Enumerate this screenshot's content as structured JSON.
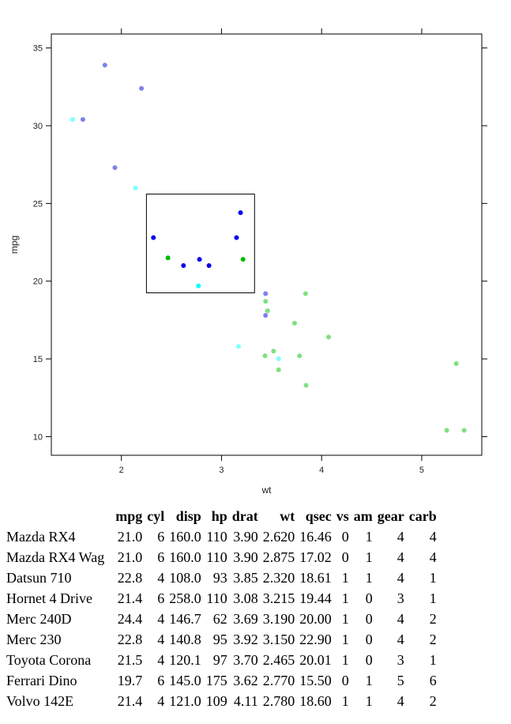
{
  "chart_data": {
    "type": "scatter",
    "title": "",
    "xlabel": "wt",
    "ylabel": "mpg",
    "xlim": [
      1.3,
      5.6
    ],
    "ylim": [
      8.8,
      35.9
    ],
    "x_ticks": [
      2,
      3,
      4,
      5
    ],
    "y_ticks": [
      10,
      15,
      20,
      25,
      30,
      35
    ],
    "grid": false,
    "selection_box": {
      "x": [
        2.25,
        3.33
      ],
      "y": [
        19.25,
        25.6
      ]
    },
    "colors": {
      "blue": "#0000ee",
      "green": "#00bb00",
      "cyan": "#00ffff",
      "light_blue": "#8080ee",
      "light_green": "#80e080",
      "light_cyan": "#80ffff"
    },
    "points": [
      {
        "x": 1.835,
        "y": 33.9,
        "color": "light_blue"
      },
      {
        "x": 2.2,
        "y": 32.4,
        "color": "light_blue"
      },
      {
        "x": 1.513,
        "y": 30.4,
        "color": "light_cyan"
      },
      {
        "x": 1.615,
        "y": 30.4,
        "color": "light_blue"
      },
      {
        "x": 1.935,
        "y": 27.3,
        "color": "light_blue"
      },
      {
        "x": 2.14,
        "y": 26.0,
        "color": "light_cyan"
      },
      {
        "x": 2.32,
        "y": 22.8,
        "color": "blue"
      },
      {
        "x": 2.465,
        "y": 21.5,
        "color": "green"
      },
      {
        "x": 2.62,
        "y": 21.0,
        "color": "blue"
      },
      {
        "x": 2.77,
        "y": 19.7,
        "color": "cyan"
      },
      {
        "x": 2.78,
        "y": 21.4,
        "color": "blue"
      },
      {
        "x": 2.875,
        "y": 21.0,
        "color": "blue"
      },
      {
        "x": 3.15,
        "y": 22.8,
        "color": "blue"
      },
      {
        "x": 3.19,
        "y": 24.4,
        "color": "blue"
      },
      {
        "x": 3.215,
        "y": 21.4,
        "color": "green"
      },
      {
        "x": 3.17,
        "y": 15.8,
        "color": "light_cyan"
      },
      {
        "x": 3.435,
        "y": 15.2,
        "color": "light_green"
      },
      {
        "x": 3.44,
        "y": 18.7,
        "color": "light_green"
      },
      {
        "x": 3.44,
        "y": 19.2,
        "color": "light_blue"
      },
      {
        "x": 3.44,
        "y": 17.8,
        "color": "light_blue"
      },
      {
        "x": 3.46,
        "y": 18.1,
        "color": "light_green"
      },
      {
        "x": 3.52,
        "y": 15.5,
        "color": "light_green"
      },
      {
        "x": 3.57,
        "y": 15.0,
        "color": "light_cyan"
      },
      {
        "x": 3.57,
        "y": 14.3,
        "color": "light_green"
      },
      {
        "x": 3.73,
        "y": 17.3,
        "color": "light_green"
      },
      {
        "x": 3.78,
        "y": 15.2,
        "color": "light_green"
      },
      {
        "x": 3.84,
        "y": 19.2,
        "color": "light_green"
      },
      {
        "x": 3.845,
        "y": 13.3,
        "color": "light_green"
      },
      {
        "x": 4.07,
        "y": 16.4,
        "color": "light_green"
      },
      {
        "x": 5.25,
        "y": 10.4,
        "color": "light_green"
      },
      {
        "x": 5.345,
        "y": 14.7,
        "color": "light_green"
      },
      {
        "x": 5.424,
        "y": 10.4,
        "color": "light_green"
      }
    ]
  },
  "table": {
    "columns": [
      "mpg",
      "cyl",
      "disp",
      "hp",
      "drat",
      "wt",
      "qsec",
      "vs",
      "am",
      "gear",
      "carb"
    ],
    "rows": [
      {
        "name": "Mazda RX4",
        "values": [
          "21.0",
          "6",
          "160.0",
          "110",
          "3.90",
          "2.620",
          "16.46",
          "0",
          "1",
          "4",
          "4"
        ]
      },
      {
        "name": "Mazda RX4 Wag",
        "values": [
          "21.0",
          "6",
          "160.0",
          "110",
          "3.90",
          "2.875",
          "17.02",
          "0",
          "1",
          "4",
          "4"
        ]
      },
      {
        "name": "Datsun 710",
        "values": [
          "22.8",
          "4",
          "108.0",
          "93",
          "3.85",
          "2.320",
          "18.61",
          "1",
          "1",
          "4",
          "1"
        ]
      },
      {
        "name": "Hornet 4 Drive",
        "values": [
          "21.4",
          "6",
          "258.0",
          "110",
          "3.08",
          "3.215",
          "19.44",
          "1",
          "0",
          "3",
          "1"
        ]
      },
      {
        "name": "Merc 240D",
        "values": [
          "24.4",
          "4",
          "146.7",
          "62",
          "3.69",
          "3.190",
          "20.00",
          "1",
          "0",
          "4",
          "2"
        ]
      },
      {
        "name": "Merc 230",
        "values": [
          "22.8",
          "4",
          "140.8",
          "95",
          "3.92",
          "3.150",
          "22.90",
          "1",
          "0",
          "4",
          "2"
        ]
      },
      {
        "name": "Toyota Corona",
        "values": [
          "21.5",
          "4",
          "120.1",
          "97",
          "3.70",
          "2.465",
          "20.01",
          "1",
          "0",
          "3",
          "1"
        ]
      },
      {
        "name": "Ferrari Dino",
        "values": [
          "19.7",
          "6",
          "145.0",
          "175",
          "3.62",
          "2.770",
          "15.50",
          "0",
          "1",
          "5",
          "6"
        ]
      },
      {
        "name": "Volvo 142E",
        "values": [
          "21.4",
          "4",
          "121.0",
          "109",
          "4.11",
          "2.780",
          "18.60",
          "1",
          "1",
          "4",
          "2"
        ]
      }
    ]
  }
}
